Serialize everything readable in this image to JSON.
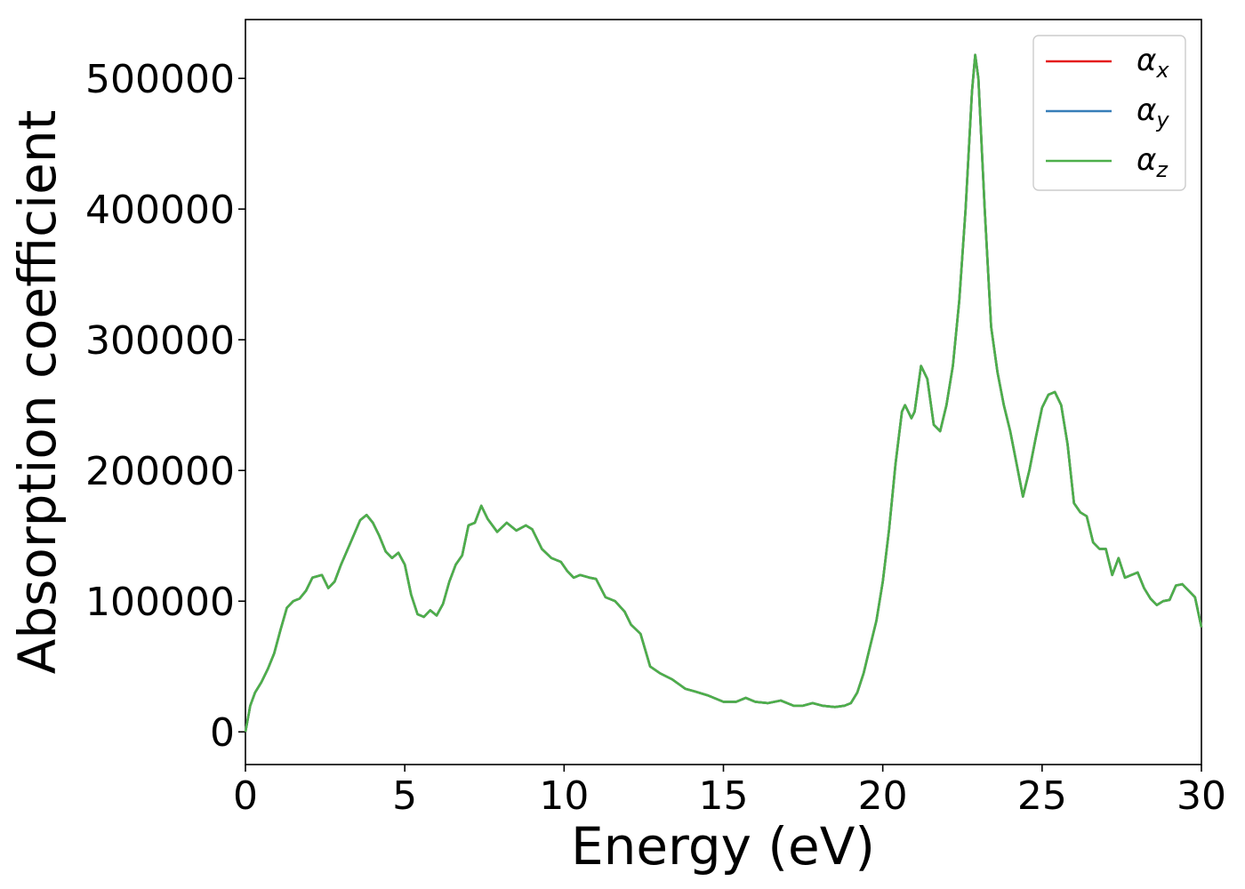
{
  "chart_data": {
    "type": "line",
    "title": "",
    "xlabel": "Energy (eV)",
    "ylabel": "Absorption coefficient",
    "xlim": [
      0,
      30
    ],
    "ylim": [
      -25000,
      545000
    ],
    "xticks": [
      0,
      5,
      10,
      15,
      20,
      25,
      30
    ],
    "yticks": [
      0,
      100000,
      200000,
      300000,
      400000,
      500000
    ],
    "grid": false,
    "legend": {
      "position": "top-right",
      "entries": [
        {
          "name": "α",
          "sub": "x",
          "color": "#e41a1c"
        },
        {
          "name": "α",
          "sub": "y",
          "color": "#377eb8"
        },
        {
          "name": "α",
          "sub": "z",
          "color": "#4daf4a"
        }
      ]
    },
    "x": [
      0,
      0.15,
      0.3,
      0.5,
      0.7,
      0.9,
      1.1,
      1.3,
      1.5,
      1.7,
      1.9,
      2.1,
      2.4,
      2.6,
      2.8,
      3.0,
      3.3,
      3.6,
      3.8,
      4.0,
      4.2,
      4.4,
      4.6,
      4.8,
      5.0,
      5.2,
      5.4,
      5.6,
      5.8,
      6.0,
      6.2,
      6.4,
      6.6,
      6.8,
      7.0,
      7.2,
      7.4,
      7.6,
      7.9,
      8.2,
      8.5,
      8.8,
      9.0,
      9.3,
      9.6,
      9.9,
      10.1,
      10.3,
      10.5,
      10.8,
      11.0,
      11.3,
      11.6,
      11.9,
      12.1,
      12.4,
      12.7,
      13.0,
      13.4,
      13.8,
      14.1,
      14.5,
      15.0,
      15.4,
      15.7,
      16.0,
      16.4,
      16.8,
      17.2,
      17.5,
      17.8,
      18.1,
      18.5,
      18.8,
      19.0,
      19.2,
      19.4,
      19.6,
      19.8,
      20.0,
      20.2,
      20.4,
      20.6,
      20.7,
      20.9,
      21.0,
      21.2,
      21.4,
      21.6,
      21.8,
      22.0,
      22.2,
      22.4,
      22.6,
      22.8,
      22.9,
      23.0,
      23.2,
      23.4,
      23.6,
      23.8,
      24.0,
      24.2,
      24.4,
      24.6,
      24.8,
      25.0,
      25.2,
      25.4,
      25.6,
      25.8,
      26.0,
      26.2,
      26.4,
      26.6,
      26.8,
      27.0,
      27.2,
      27.4,
      27.6,
      27.8,
      28.0,
      28.2,
      28.4,
      28.6,
      28.8,
      29.0,
      29.2,
      29.4,
      29.6,
      29.8,
      30.0
    ],
    "series": [
      {
        "name": "α_x",
        "color": "#e41a1c"
      },
      {
        "name": "α_y",
        "color": "#377eb8"
      },
      {
        "name": "α_z",
        "color": "#4daf4a"
      }
    ],
    "y": [
      0,
      20000,
      30000,
      38000,
      48000,
      60000,
      78000,
      95000,
      100000,
      102000,
      108000,
      118000,
      120000,
      110000,
      115000,
      128000,
      145000,
      162000,
      166000,
      160000,
      150000,
      138000,
      133000,
      137000,
      128000,
      105000,
      90000,
      88000,
      93000,
      89000,
      98000,
      115000,
      128000,
      135000,
      158000,
      160000,
      173000,
      163000,
      153000,
      160000,
      154000,
      158000,
      155000,
      140000,
      133000,
      130000,
      123000,
      118000,
      120000,
      118000,
      117000,
      103000,
      100000,
      92000,
      82000,
      75000,
      50000,
      45000,
      40000,
      33000,
      31000,
      28000,
      23000,
      23000,
      26000,
      23000,
      22000,
      24000,
      20000,
      20000,
      22000,
      20000,
      19000,
      20000,
      22000,
      30000,
      45000,
      65000,
      85000,
      115000,
      155000,
      205000,
      245000,
      250000,
      240000,
      245000,
      280000,
      270000,
      235000,
      230000,
      250000,
      280000,
      330000,
      400000,
      490000,
      518000,
      500000,
      400000,
      310000,
      275000,
      250000,
      230000,
      205000,
      180000,
      200000,
      225000,
      248000,
      258000,
      260000,
      250000,
      220000,
      175000,
      168000,
      165000,
      145000,
      140000,
      140000,
      120000,
      133000,
      118000,
      120000,
      122000,
      110000,
      102000,
      97000,
      100000,
      101000,
      112000,
      113000,
      108000,
      103000,
      80000
    ]
  }
}
